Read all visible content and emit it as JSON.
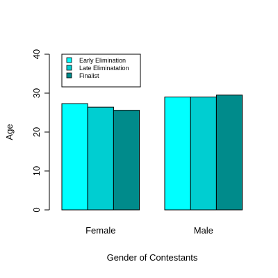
{
  "chart_data": {
    "type": "bar",
    "layout": "grouped",
    "title": "",
    "xlabel": "Gender of Contestants",
    "ylabel": "Age",
    "categories": [
      "Female",
      "Male"
    ],
    "series": [
      {
        "name": "Early Elimination",
        "values": [
          27.3,
          29.0
        ],
        "color": "#00FFFF"
      },
      {
        "name": "Late Eliminatation",
        "values": [
          26.4,
          29.0
        ],
        "color": "#00CED1"
      },
      {
        "name": "Finalist",
        "values": [
          25.6,
          29.5
        ],
        "color": "#008B8B"
      }
    ],
    "ylim": [
      0,
      40
    ],
    "yticks": [
      0,
      10,
      20,
      30,
      40
    ],
    "ytick_labels": [
      "0",
      "10",
      "20",
      "30",
      "40"
    ],
    "legend_position": "top-left",
    "grid": false
  }
}
